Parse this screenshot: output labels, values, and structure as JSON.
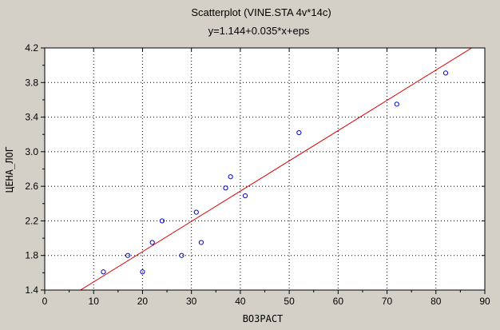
{
  "chart_data": {
    "type": "scatter",
    "title": "Scatterplot (VINE.STA 4v*14c)",
    "subtitle": "y=1.144+0.035*x+eps",
    "xlabel": "ВОЗРАСТ",
    "ylabel": "ЦЕНА_ЛОГ",
    "xlim": [
      0,
      90
    ],
    "ylim": [
      1.4,
      4.2
    ],
    "x_ticks": [
      "0",
      "10",
      "20",
      "30",
      "40",
      "50",
      "60",
      "70",
      "80",
      "90"
    ],
    "y_ticks": [
      "1.4",
      "1.8",
      "2.2",
      "2.6",
      "3.0",
      "3.4",
      "3.8",
      "4.2"
    ],
    "grid": true,
    "points": [
      {
        "x": 12,
        "y": 1.61
      },
      {
        "x": 17,
        "y": 1.8
      },
      {
        "x": 20,
        "y": 1.61
      },
      {
        "x": 22,
        "y": 1.95
      },
      {
        "x": 24,
        "y": 2.2
      },
      {
        "x": 28,
        "y": 1.8
      },
      {
        "x": 31,
        "y": 2.3
      },
      {
        "x": 32,
        "y": 1.95
      },
      {
        "x": 37,
        "y": 2.58
      },
      {
        "x": 38,
        "y": 2.71
      },
      {
        "x": 41,
        "y": 2.49
      },
      {
        "x": 52,
        "y": 3.22
      },
      {
        "x": 72,
        "y": 3.55
      },
      {
        "x": 82,
        "y": 3.91
      }
    ],
    "fit_line": {
      "intercept": 1.144,
      "slope": 0.035
    },
    "colors": {
      "background": "#d4d0c8",
      "plot_area": "#ffffff",
      "points": "#0000cc",
      "fit_line": "#dd0000",
      "grid": "#000000"
    }
  }
}
